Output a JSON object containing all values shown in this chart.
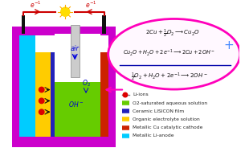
{
  "bg_color": "#ffffff",
  "cell_colors": {
    "outer_frame": "#cc00cc",
    "cyan_anode": "#00ccff",
    "yellow_electrolyte": "#ffcc00",
    "blue_lisicon": "#2222bb",
    "green_solution": "#66cc00",
    "red_cathode": "#cc2200",
    "white_air": "#ffffff"
  },
  "legend_items": [
    {
      "color": "#dd0000",
      "dot": true,
      "label": "Li-ions"
    },
    {
      "color": "#66cc00",
      "dot": false,
      "label": "O2-saturated aqueous solution"
    },
    {
      "color": "#2222bb",
      "dot": false,
      "label": "Ceramic LISICON film"
    },
    {
      "color": "#ffcc00",
      "dot": false,
      "label": "Organic electrolyte solution"
    },
    {
      "color": "#cc2200",
      "dot": false,
      "label": "Metallic Cu catalytic cathode"
    },
    {
      "color": "#00ccff",
      "dot": false,
      "label": "Metallic Li-anode"
    }
  ],
  "text_air_color": "#0000dd",
  "text_elec_color": "#cc0000",
  "text_blue_color": "#0000cc",
  "ellipse_color": "#ff00bb",
  "wire_color": "#cc0000",
  "electrode_color": "#111111",
  "bulb_color": "#ffdd00",
  "bulb_ray_color": "#ffaa00",
  "arrow_black": "#111111",
  "eq_color": "#111111",
  "plus_color": "#4488ff",
  "line_sep_color": "#0000aa",
  "fig_w": 3.1,
  "fig_h": 1.89,
  "dpi": 100
}
